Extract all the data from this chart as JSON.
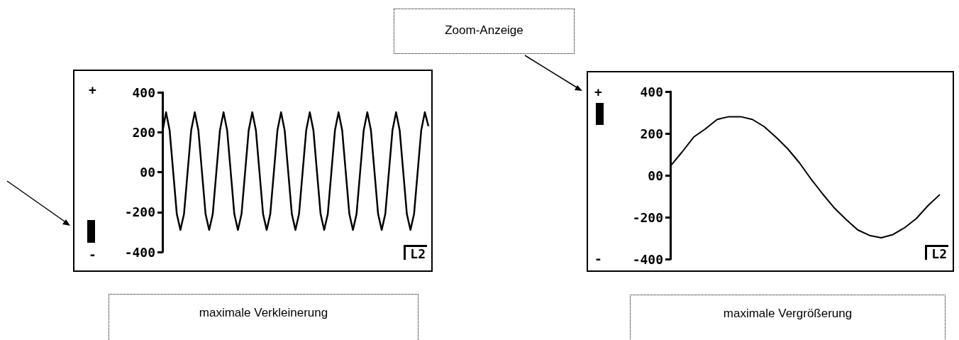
{
  "chart_data": [
    {
      "type": "line",
      "categories": [
        null,
        null,
        null,
        null,
        null,
        null,
        null,
        null,
        null,
        null,
        null,
        null,
        null,
        null,
        null,
        null,
        null,
        null,
        null,
        null,
        null,
        null,
        null,
        null,
        null,
        null,
        null,
        null,
        null,
        null,
        null,
        null,
        null,
        null,
        null,
        null,
        null,
        null,
        null,
        null,
        null,
        null,
        null,
        null,
        null,
        null,
        null,
        null,
        null,
        null,
        null,
        null,
        null,
        null,
        null,
        null,
        null,
        null,
        null,
        null,
        null,
        null,
        null,
        null,
        null,
        null,
        null,
        null,
        null,
        null,
        null,
        null,
        null,
        null,
        null
      ],
      "values": [
        200,
        300,
        210,
        0,
        -210,
        -290,
        -210,
        0,
        210,
        300,
        210,
        0,
        -210,
        -290,
        -210,
        0,
        210,
        300,
        210,
        0,
        -210,
        -290,
        -210,
        0,
        210,
        300,
        210,
        0,
        -210,
        -290,
        -210,
        0,
        210,
        300,
        210,
        0,
        -210,
        -290,
        -210,
        0,
        210,
        300,
        210,
        0,
        -210,
        -290,
        -210,
        0,
        210,
        300,
        210,
        0,
        -210,
        -290,
        -210,
        0,
        210,
        300,
        210,
        0,
        -210,
        -290,
        -210,
        0,
        210,
        300,
        210,
        0,
        -210,
        -290,
        -210,
        0,
        210,
        300,
        230
      ],
      "color": "#000000",
      "marker": "none",
      "ylim": [
        -400,
        400
      ],
      "yticks": [
        -400,
        -200,
        {
          "value": 0,
          "label": "00"
        },
        200,
        400
      ],
      "tick_labels": "y",
      "annotations": [
        "+",
        "-",
        "L2",
        "maximale Verkleinerung"
      ]
    },
    {
      "type": "line",
      "categories": [
        null,
        null,
        null,
        null,
        null,
        null,
        null,
        null,
        null,
        null,
        null,
        null,
        null,
        null,
        null,
        null,
        null,
        null,
        null,
        null,
        null,
        null,
        null,
        null
      ],
      "values": [
        44,
        111,
        183,
        222,
        267,
        280,
        280,
        267,
        233,
        183,
        128,
        61,
        -17,
        -89,
        -156,
        -211,
        -261,
        -287,
        -298,
        -283,
        -250,
        -206,
        -144,
        -92
      ],
      "color": "#000000",
      "marker": "none",
      "ylim": [
        -400,
        400
      ],
      "yticks": [
        -400,
        -200,
        {
          "value": 0,
          "label": "00"
        },
        200,
        400
      ],
      "tick_labels": "y",
      "annotations": [
        "+",
        "-",
        "L2",
        "maximale Vergrößerung",
        "Zoom-Anzeige"
      ]
    }
  ]
}
